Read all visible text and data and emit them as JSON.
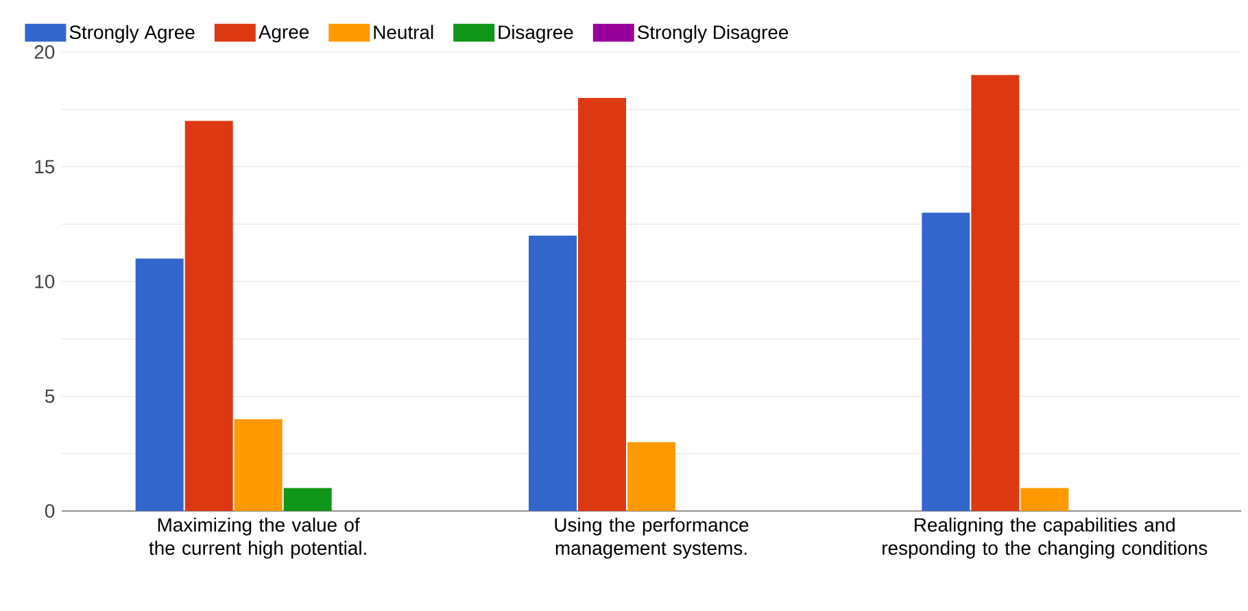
{
  "chart_data": {
    "type": "bar",
    "categories": [
      "Maximizing the value of the current high potential.",
      "Using the performance management systems.",
      "Realigning the capabilities and responding to the changing conditions"
    ],
    "series": [
      {
        "name": "Strongly Agree",
        "color": "#3366cc",
        "values": [
          11,
          12,
          13
        ]
      },
      {
        "name": "Agree",
        "color": "#dc3912",
        "values": [
          17,
          18,
          19
        ]
      },
      {
        "name": "Neutral",
        "color": "#ff9900",
        "values": [
          4,
          3,
          1
        ]
      },
      {
        "name": "Disagree",
        "color": "#109618",
        "values": [
          1,
          0,
          0
        ]
      },
      {
        "name": "Strongly Disagree",
        "color": "#990099",
        "values": [
          0,
          0,
          0
        ]
      }
    ],
    "ylim": [
      0,
      20
    ],
    "yticks": [
      0,
      {
        "value": 2.5,
        "label": null
      },
      5,
      {
        "value": 7.5,
        "label": null
      },
      10,
      {
        "value": 12.5,
        "label": null
      },
      15,
      {
        "value": 17.5,
        "label": null
      },
      20
    ],
    "grid": "y",
    "legend": "top left"
  }
}
